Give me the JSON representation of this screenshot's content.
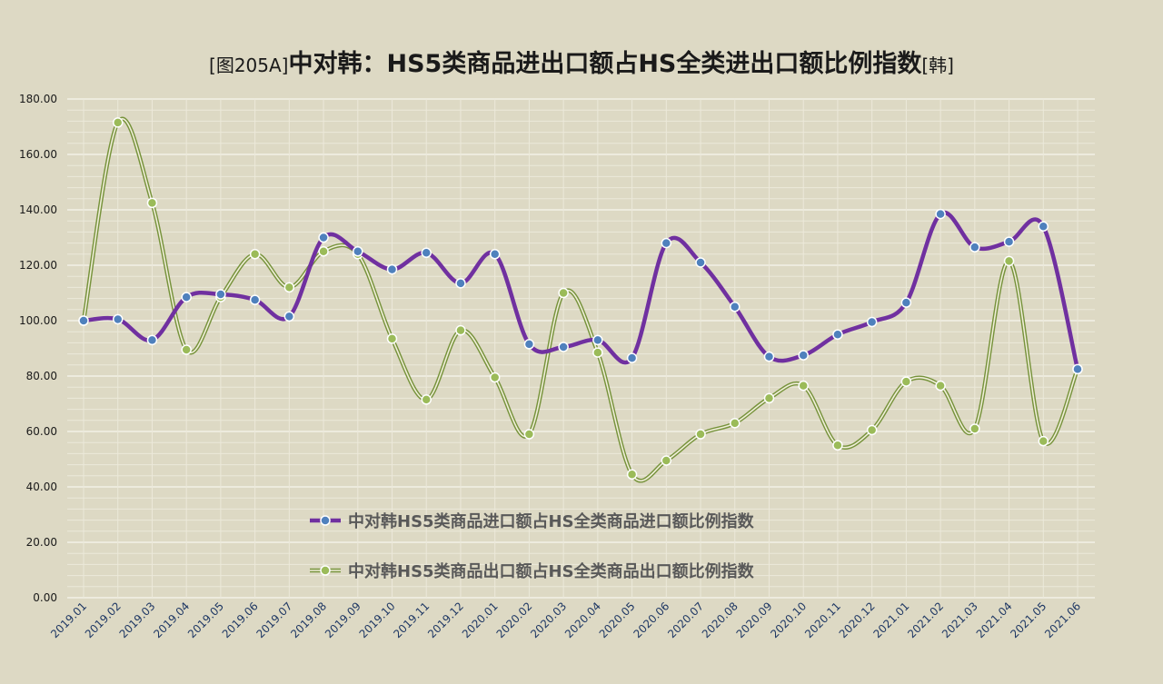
{
  "title": {
    "prefix": "[图205A]",
    "main": "中对韩：HS5类商品进出口额占HS全类进出口额比例指数",
    "suffix": "[韩]"
  },
  "colors": {
    "background": "#ddd9c4",
    "import_line": "#7030a0",
    "import_marker": "#4f81bd",
    "export_line": "#77933c",
    "export_marker": "#9bbb59"
  },
  "chart_data": {
    "type": "line",
    "title": "[图205A]中对韩：HS5类商品进出口额占HS全类进出口额比例指数[韩]",
    "categories": [
      "2019.01",
      "2019.02",
      "2019.03",
      "2019.04",
      "2019.05",
      "2019.06",
      "2019.07",
      "2019.08",
      "2019.09",
      "2019.10",
      "2019.11",
      "2019.12",
      "2020.01",
      "2020.02",
      "2020.03",
      "2020.04",
      "2020.05",
      "2020.06",
      "2020.07",
      "2020.08",
      "2020.09",
      "2020.10",
      "2020.11",
      "2020.12",
      "2021.01",
      "2021.02",
      "2021.03",
      "2021.04",
      "2021.05",
      "2021.06"
    ],
    "y_ticks": [
      "0.00",
      "20.00",
      "40.00",
      "60.00",
      "80.00",
      "100.00",
      "120.00",
      "140.00",
      "160.00",
      "180.00"
    ],
    "ylim": [
      0,
      180
    ],
    "grid": true,
    "legend_position": "bottom-center inside plot",
    "series": [
      {
        "name": "中对韩HS5类商品进口额占HS全类商品进口额比例指数",
        "values": [
          100,
          100.5,
          93,
          108.5,
          109.5,
          107.5,
          101.5,
          130,
          125,
          118.5,
          124.5,
          113.5,
          124,
          91.5,
          90.5,
          93,
          86.5,
          128,
          121,
          105,
          87,
          87.5,
          95,
          99.5,
          106.5,
          138.5,
          126.5,
          128.5,
          134,
          82.5
        ]
      },
      {
        "name": "中对韩HS5类商品出口额占HS全类商品出口额比例指数",
        "values": [
          100,
          171.5,
          142.5,
          89.5,
          108.5,
          124,
          112,
          125,
          124,
          93.5,
          71.5,
          96.5,
          79.5,
          59,
          110,
          88.5,
          44.5,
          49.5,
          59,
          63,
          72,
          76.5,
          55,
          60.5,
          78,
          76.5,
          61,
          121.5,
          56.5,
          82.5
        ]
      }
    ]
  }
}
